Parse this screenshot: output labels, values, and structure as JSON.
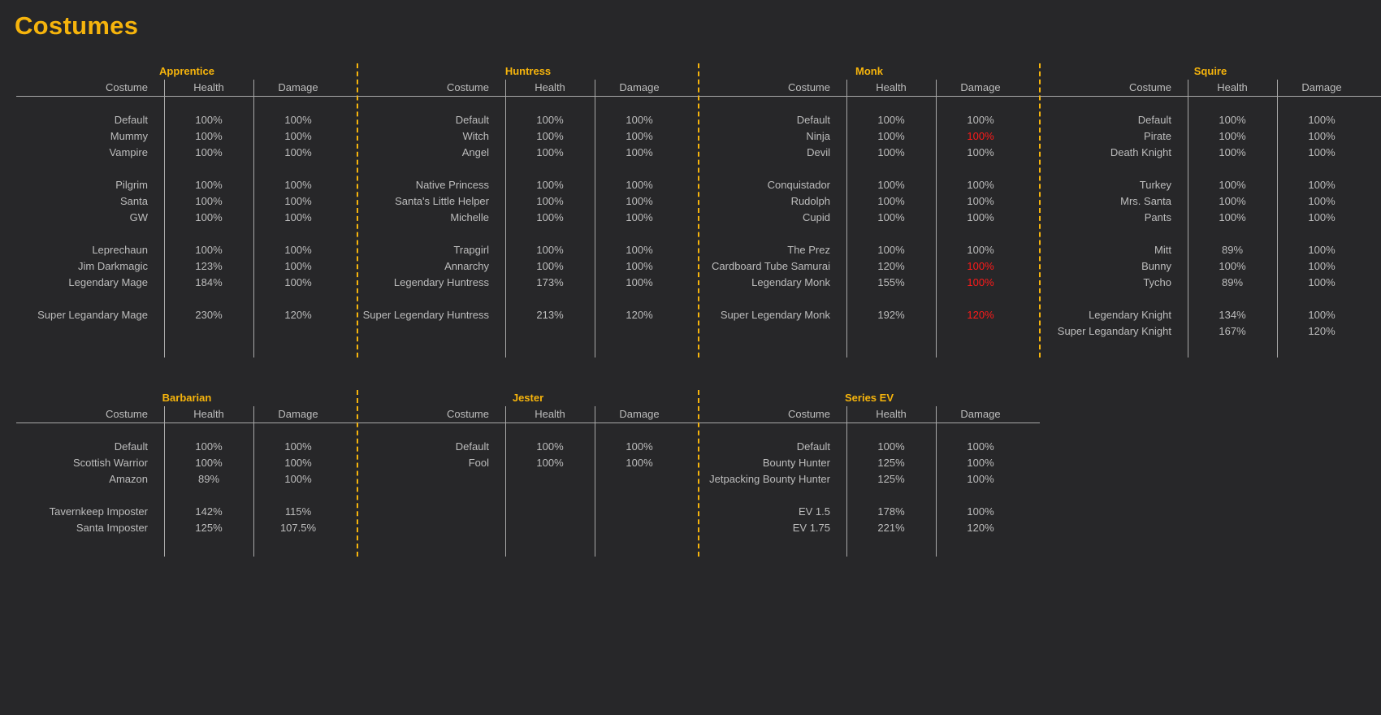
{
  "title": "Costumes",
  "headers": {
    "costume": "Costume",
    "health": "Health",
    "damage": "Damage"
  },
  "colors": {
    "accent": "#f6b40c",
    "text": "#bdbdbd",
    "highlight": "#ff1a1a",
    "background": "#272729"
  },
  "sections": [
    {
      "name": "Apprentice",
      "rows": [
        {
          "costume": "Default",
          "health": "100%",
          "damage": "100%"
        },
        {
          "costume": "Mummy",
          "health": "100%",
          "damage": "100%"
        },
        {
          "costume": "Vampire",
          "health": "100%",
          "damage": "100%"
        },
        null,
        {
          "costume": "Pilgrim",
          "health": "100%",
          "damage": "100%"
        },
        {
          "costume": "Santa",
          "health": "100%",
          "damage": "100%"
        },
        {
          "costume": "GW",
          "health": "100%",
          "damage": "100%"
        },
        null,
        {
          "costume": "Leprechaun",
          "health": "100%",
          "damage": "100%"
        },
        {
          "costume": "Jim Darkmagic",
          "health": "123%",
          "damage": "100%"
        },
        {
          "costume": "Legendary Mage",
          "health": "184%",
          "damage": "100%"
        },
        null,
        {
          "costume": "Super Legandary Mage",
          "health": "230%",
          "damage": "120%"
        }
      ]
    },
    {
      "name": "Huntress",
      "rows": [
        {
          "costume": "Default",
          "health": "100%",
          "damage": "100%"
        },
        {
          "costume": "Witch",
          "health": "100%",
          "damage": "100%"
        },
        {
          "costume": "Angel",
          "health": "100%",
          "damage": "100%"
        },
        null,
        {
          "costume": "Native Princess",
          "health": "100%",
          "damage": "100%"
        },
        {
          "costume": "Santa's Little Helper",
          "health": "100%",
          "damage": "100%"
        },
        {
          "costume": "Michelle",
          "health": "100%",
          "damage": "100%"
        },
        null,
        {
          "costume": "Trapgirl",
          "health": "100%",
          "damage": "100%"
        },
        {
          "costume": "Annarchy",
          "health": "100%",
          "damage": "100%"
        },
        {
          "costume": "Legendary Huntress",
          "health": "173%",
          "damage": "100%"
        },
        null,
        {
          "costume": "Super Legendary Huntress",
          "health": "213%",
          "damage": "120%"
        }
      ]
    },
    {
      "name": "Monk",
      "rows": [
        {
          "costume": "Default",
          "health": "100%",
          "damage": "100%"
        },
        {
          "costume": "Ninja",
          "health": "100%",
          "damage": "100%",
          "damage_red": true
        },
        {
          "costume": "Devil",
          "health": "100%",
          "damage": "100%"
        },
        null,
        {
          "costume": "Conquistador",
          "health": "100%",
          "damage": "100%"
        },
        {
          "costume": "Rudolph",
          "health": "100%",
          "damage": "100%"
        },
        {
          "costume": "Cupid",
          "health": "100%",
          "damage": "100%"
        },
        null,
        {
          "costume": "The Prez",
          "health": "100%",
          "damage": "100%"
        },
        {
          "costume": "Cardboard Tube Samurai",
          "health": "120%",
          "damage": "100%",
          "damage_red": true
        },
        {
          "costume": "Legendary Monk",
          "health": "155%",
          "damage": "100%",
          "damage_red": true
        },
        null,
        {
          "costume": "Super Legendary Monk",
          "health": "192%",
          "damage": "120%",
          "damage_red": true
        }
      ]
    },
    {
      "name": "Squire",
      "rows": [
        {
          "costume": "Default",
          "health": "100%",
          "damage": "100%"
        },
        {
          "costume": "Pirate",
          "health": "100%",
          "damage": "100%"
        },
        {
          "costume": "Death Knight",
          "health": "100%",
          "damage": "100%"
        },
        null,
        {
          "costume": "Turkey",
          "health": "100%",
          "damage": "100%"
        },
        {
          "costume": "Mrs. Santa",
          "health": "100%",
          "damage": "100%"
        },
        {
          "costume": "Pants",
          "health": "100%",
          "damage": "100%"
        },
        null,
        {
          "costume": "Mitt",
          "health": "89%",
          "damage": "100%"
        },
        {
          "costume": "Bunny",
          "health": "100%",
          "damage": "100%"
        },
        {
          "costume": "Tycho",
          "health": "89%",
          "damage": "100%"
        },
        null,
        {
          "costume": "Legendary Knight",
          "health": "134%",
          "damage": "100%"
        },
        {
          "costume": "Super Legandary Knight",
          "health": "167%",
          "damage": "120%"
        }
      ]
    },
    {
      "name": "Barbarian",
      "rows": [
        {
          "costume": "Default",
          "health": "100%",
          "damage": "100%"
        },
        {
          "costume": "Scottish Warrior",
          "health": "100%",
          "damage": "100%"
        },
        {
          "costume": "Amazon",
          "health": "89%",
          "damage": "100%"
        },
        null,
        {
          "costume": "Tavernkeep Imposter",
          "health": "142%",
          "damage": "115%"
        },
        {
          "costume": "Santa Imposter",
          "health": "125%",
          "damage": "107.5%"
        }
      ]
    },
    {
      "name": "Jester",
      "rows": [
        {
          "costume": "Default",
          "health": "100%",
          "damage": "100%"
        },
        {
          "costume": "Fool",
          "health": "100%",
          "damage": "100%"
        }
      ]
    },
    {
      "name": "Series EV",
      "rows": [
        {
          "costume": "Default",
          "health": "100%",
          "damage": "100%"
        },
        {
          "costume": "Bounty Hunter",
          "health": "125%",
          "damage": "100%"
        },
        {
          "costume": "Jetpacking Bounty Hunter",
          "health": "125%",
          "damage": "100%"
        },
        null,
        {
          "costume": "EV 1.5",
          "health": "178%",
          "damage": "100%"
        },
        {
          "costume": "EV 1.75",
          "health": "221%",
          "damage": "120%"
        }
      ]
    }
  ]
}
